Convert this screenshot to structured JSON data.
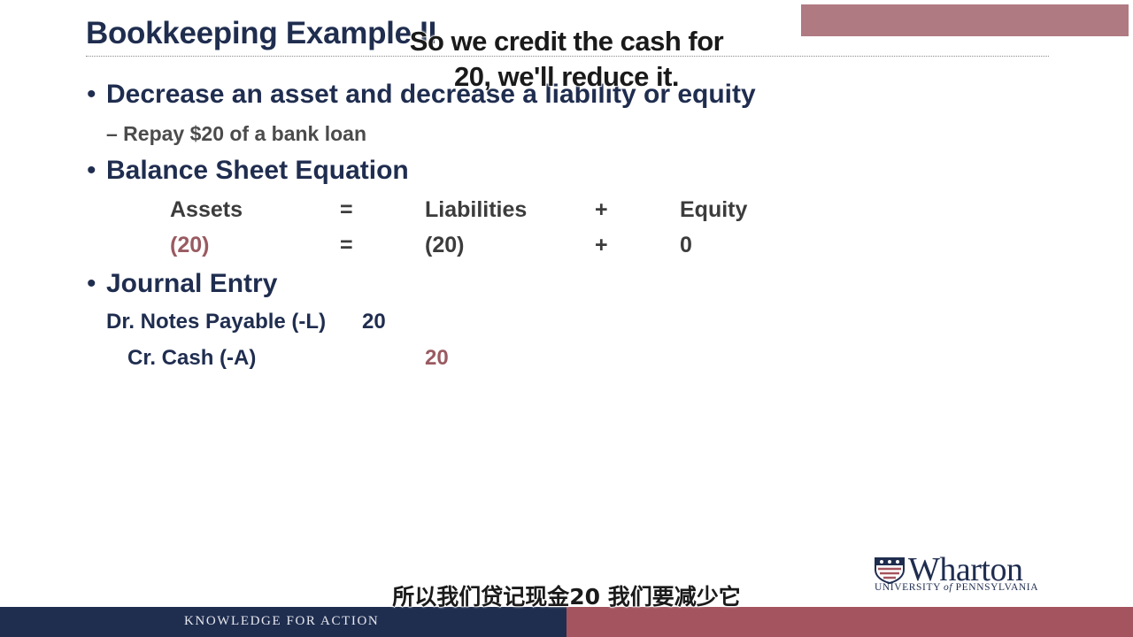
{
  "slide": {
    "title": "Bookkeeping Example II",
    "bullet1": "Decrease an asset and decrease a liability or equity",
    "bullet1_sub": "– Repay $20 of a bank loan",
    "bullet2": "Balance Sheet Equation",
    "equation": {
      "headers": [
        "Assets",
        "=",
        "Liabilities",
        "+",
        "Equity"
      ],
      "values": [
        "(20)",
        "=",
        "(20)",
        "+",
        "0"
      ]
    },
    "bullet3": "Journal Entry",
    "journal": {
      "debit_label": "Dr. Notes Payable (-L)",
      "debit_amount": "20",
      "credit_label": "Cr. Cash (-A)",
      "credit_amount": "20"
    }
  },
  "captions": {
    "english_line1": "So we credit the cash for",
    "english_line2": "20, we'll reduce it.",
    "chinese": "所以我们贷记现金20  我们要减少它"
  },
  "footer": {
    "tagline": "KNOWLEDGE FOR ACTION"
  },
  "logo": {
    "name": "Wharton",
    "university_pre": "UNIVERSITY ",
    "university_of": "of",
    "university_post": " PENNSYLVANIA"
  },
  "colors": {
    "navy": "#1f2d4f",
    "maroon": "#a4545f",
    "negative": "#9a5a61"
  }
}
